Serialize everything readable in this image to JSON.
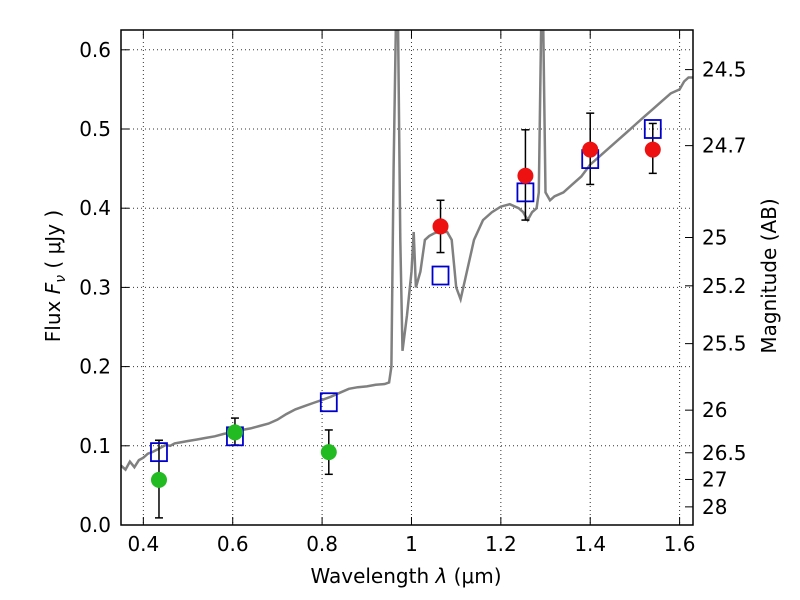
{
  "chart_data": {
    "type": "scatter",
    "xlabel_prefix": "Wavelength ",
    "xlabel_symbol": "λ",
    "xlabel_unit": " (μm)",
    "ylabel_prefix": "Flux  ",
    "ylabel_symbol": "F",
    "ylabel_sub": "ν",
    "ylabel_unit": "  ( μJy )",
    "y2label": "Magnitude (AB)",
    "xlim": [
      0.35,
      1.63
    ],
    "ylim": [
      0.0,
      0.625
    ],
    "x_ticks": [
      0.4,
      0.6,
      0.8,
      1.0,
      1.2,
      1.4,
      1.6
    ],
    "x_tick_labels": [
      "0.4",
      "0.6",
      "0.8",
      "1",
      "1.2",
      "1.4",
      "1.6"
    ],
    "y_ticks": [
      0.0,
      0.1,
      0.2,
      0.3,
      0.4,
      0.5,
      0.6
    ],
    "y_tick_labels": [
      "0.0",
      "0.1",
      "0.2",
      "0.3",
      "0.4",
      "0.5",
      "0.6"
    ],
    "mag_ticks": [
      {
        "label": "24.5",
        "flux": 0.575
      },
      {
        "label": "24.7",
        "flux": 0.479
      },
      {
        "label": "25",
        "flux": 0.363
      },
      {
        "label": "25.2",
        "flux": 0.302
      },
      {
        "label": "25.5",
        "flux": 0.229
      },
      {
        "label": "26",
        "flux": 0.145
      },
      {
        "label": "26.5",
        "flux": 0.0912
      },
      {
        "label": "27",
        "flux": 0.0575
      },
      {
        "label": "28",
        "flux": 0.0229
      }
    ],
    "grid": true,
    "model_spectrum": {
      "color": "#808080",
      "points": [
        [
          0.35,
          0.075
        ],
        [
          0.36,
          0.07
        ],
        [
          0.37,
          0.08
        ],
        [
          0.38,
          0.073
        ],
        [
          0.39,
          0.082
        ],
        [
          0.4,
          0.085
        ],
        [
          0.41,
          0.09
        ],
        [
          0.42,
          0.092
        ],
        [
          0.43,
          0.095
        ],
        [
          0.44,
          0.098
        ],
        [
          0.45,
          0.101
        ],
        [
          0.46,
          0.1
        ],
        [
          0.47,
          0.103
        ],
        [
          0.48,
          0.104
        ],
        [
          0.5,
          0.106
        ],
        [
          0.52,
          0.108
        ],
        [
          0.54,
          0.11
        ],
        [
          0.56,
          0.112
        ],
        [
          0.58,
          0.115
        ],
        [
          0.6,
          0.117
        ],
        [
          0.62,
          0.12
        ],
        [
          0.64,
          0.122
        ],
        [
          0.66,
          0.125
        ],
        [
          0.68,
          0.128
        ],
        [
          0.7,
          0.133
        ],
        [
          0.72,
          0.14
        ],
        [
          0.74,
          0.146
        ],
        [
          0.76,
          0.15
        ],
        [
          0.78,
          0.154
        ],
        [
          0.8,
          0.158
        ],
        [
          0.82,
          0.162
        ],
        [
          0.84,
          0.167
        ],
        [
          0.86,
          0.172
        ],
        [
          0.88,
          0.174
        ],
        [
          0.9,
          0.175
        ],
        [
          0.92,
          0.177
        ],
        [
          0.94,
          0.178
        ],
        [
          0.95,
          0.18
        ],
        [
          0.955,
          0.2
        ],
        [
          0.96,
          0.45
        ],
        [
          0.965,
          0.625
        ],
        [
          0.97,
          0.625
        ],
        [
          0.975,
          0.36
        ],
        [
          0.98,
          0.22
        ],
        [
          0.99,
          0.265
        ],
        [
          1.0,
          0.32
        ],
        [
          1.005,
          0.37
        ],
        [
          1.01,
          0.3
        ],
        [
          1.02,
          0.32
        ],
        [
          1.03,
          0.36
        ],
        [
          1.04,
          0.365
        ],
        [
          1.05,
          0.368
        ],
        [
          1.06,
          0.37
        ],
        [
          1.08,
          0.37
        ],
        [
          1.09,
          0.36
        ],
        [
          1.1,
          0.3
        ],
        [
          1.11,
          0.285
        ],
        [
          1.12,
          0.31
        ],
        [
          1.14,
          0.36
        ],
        [
          1.16,
          0.385
        ],
        [
          1.18,
          0.395
        ],
        [
          1.2,
          0.402
        ],
        [
          1.22,
          0.405
        ],
        [
          1.24,
          0.4
        ],
        [
          1.25,
          0.395
        ],
        [
          1.26,
          0.385
        ],
        [
          1.27,
          0.395
        ],
        [
          1.28,
          0.4
        ],
        [
          1.285,
          0.42
        ],
        [
          1.29,
          0.625
        ],
        [
          1.295,
          0.625
        ],
        [
          1.3,
          0.42
        ],
        [
          1.31,
          0.41
        ],
        [
          1.32,
          0.415
        ],
        [
          1.34,
          0.42
        ],
        [
          1.36,
          0.43
        ],
        [
          1.38,
          0.44
        ],
        [
          1.4,
          0.455
        ],
        [
          1.42,
          0.465
        ],
        [
          1.44,
          0.475
        ],
        [
          1.46,
          0.485
        ],
        [
          1.48,
          0.495
        ],
        [
          1.5,
          0.505
        ],
        [
          1.52,
          0.515
        ],
        [
          1.54,
          0.525
        ],
        [
          1.56,
          0.535
        ],
        [
          1.58,
          0.545
        ],
        [
          1.6,
          0.55
        ],
        [
          1.61,
          0.56
        ],
        [
          1.62,
          0.565
        ],
        [
          1.63,
          0.565
        ]
      ]
    },
    "series": [
      {
        "marker": "square",
        "color": "#0000cc",
        "points": [
          [
            0.435,
            0.092
          ],
          [
            0.605,
            0.112
          ],
          [
            0.815,
            0.155
          ],
          [
            1.065,
            0.315
          ],
          [
            1.255,
            0.42
          ],
          [
            1.4,
            0.462
          ],
          [
            1.54,
            0.5
          ]
        ]
      },
      {
        "marker": "circle",
        "color": "#22bb22",
        "points": [
          [
            0.435,
            0.057
          ],
          [
            0.605,
            0.117
          ],
          [
            0.815,
            0.092
          ]
        ],
        "errors": [
          [
            0.048,
            0.05
          ],
          [
            0.016,
            0.018
          ],
          [
            0.028,
            0.028
          ]
        ]
      },
      {
        "marker": "circle",
        "color": "#ee1111",
        "points": [
          [
            1.065,
            0.377
          ],
          [
            1.255,
            0.441
          ],
          [
            1.4,
            0.474
          ],
          [
            1.54,
            0.474
          ]
        ],
        "errors": [
          [
            0.033,
            0.033
          ],
          [
            0.056,
            0.058
          ],
          [
            0.044,
            0.046
          ],
          [
            0.03,
            0.033
          ]
        ]
      }
    ]
  }
}
